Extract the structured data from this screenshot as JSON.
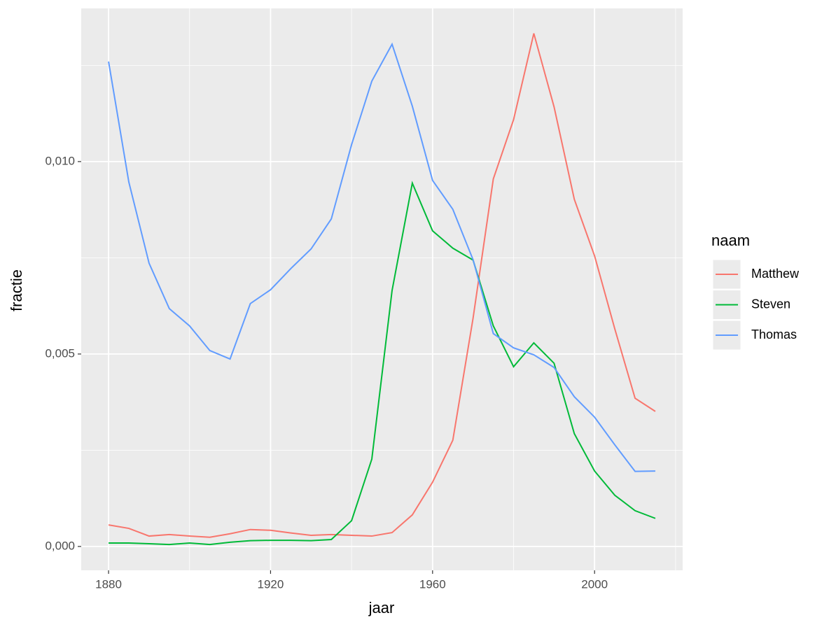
{
  "chart_data": {
    "type": "line",
    "xlabel": "jaar",
    "ylabel": "fractie",
    "legend_title": "naam",
    "legend": "right",
    "grid": true,
    "x": [
      1880,
      1885,
      1890,
      1895,
      1900,
      1905,
      1910,
      1915,
      1920,
      1925,
      1930,
      1935,
      1940,
      1945,
      1950,
      1955,
      1960,
      1965,
      1970,
      1975,
      1980,
      1985,
      1990,
      1995,
      2000,
      2005,
      2010,
      2015
    ],
    "series": [
      {
        "name": "Matthew",
        "color": "#F8766D",
        "values": [
          0.00056,
          0.00047,
          0.00027,
          0.00031,
          0.00027,
          0.00024,
          0.00033,
          0.00044,
          0.00042,
          0.00035,
          0.00029,
          0.00031,
          0.00029,
          0.00027,
          0.00036,
          0.00082,
          0.00167,
          0.00276,
          0.00593,
          0.00955,
          0.01109,
          0.01333,
          0.01142,
          0.00902,
          0.00755,
          0.00565,
          0.00385,
          0.00351
        ]
      },
      {
        "name": "Steven",
        "color": "#00BA38",
        "values": [
          9e-05,
          9e-05,
          7e-05,
          5e-05,
          9e-05,
          5e-05,
          0.00011,
          0.00015,
          0.00016,
          0.00016,
          0.00015,
          0.00018,
          0.00067,
          0.00227,
          0.00665,
          0.00944,
          0.0082,
          0.00775,
          0.00744,
          0.00573,
          0.00467,
          0.00529,
          0.00476,
          0.00293,
          0.00196,
          0.00133,
          0.00093,
          0.00073
        ]
      },
      {
        "name": "Thomas",
        "color": "#619CFF",
        "values": [
          0.0126,
          0.00947,
          0.00736,
          0.00618,
          0.00573,
          0.00509,
          0.00487,
          0.00631,
          0.00667,
          0.00722,
          0.00773,
          0.00851,
          0.01044,
          0.01209,
          0.01305,
          0.01144,
          0.00951,
          0.00876,
          0.00745,
          0.00553,
          0.00516,
          0.00498,
          0.00465,
          0.00389,
          0.00336,
          0.00264,
          0.00195,
          0.00196
        ]
      }
    ],
    "xlim": [
      1873.25,
      2021.75
    ],
    "xticks": [
      1880,
      1920,
      1960,
      2000
    ],
    "minor_xticks": [
      1900,
      1940,
      1980,
      2020
    ],
    "ylim": [
      -0.00062,
      0.01398
    ],
    "yticks": [
      {
        "value": 0,
        "label": "0,000"
      },
      {
        "value": 0.005,
        "label": "0,005"
      },
      {
        "value": 0.01,
        "label": "0,010"
      }
    ],
    "minor_yticks": [
      0.0025,
      0.0075,
      0.0125
    ]
  }
}
